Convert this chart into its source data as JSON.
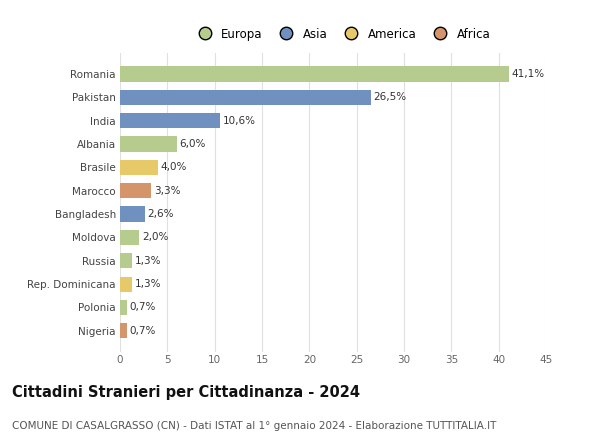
{
  "categories": [
    "Romania",
    "Pakistan",
    "India",
    "Albania",
    "Brasile",
    "Marocco",
    "Bangladesh",
    "Moldova",
    "Russia",
    "Rep. Dominicana",
    "Polonia",
    "Nigeria"
  ],
  "values": [
    41.1,
    26.5,
    10.6,
    6.0,
    4.0,
    3.3,
    2.6,
    2.0,
    1.3,
    1.3,
    0.7,
    0.7
  ],
  "labels": [
    "41,1%",
    "26,5%",
    "10,6%",
    "6,0%",
    "4,0%",
    "3,3%",
    "2,6%",
    "2,0%",
    "1,3%",
    "1,3%",
    "0,7%",
    "0,7%"
  ],
  "colors": [
    "#b5cc8e",
    "#7090c0",
    "#7090c0",
    "#b5cc8e",
    "#e8c96a",
    "#d4956a",
    "#7090c0",
    "#b5cc8e",
    "#b5cc8e",
    "#e8c96a",
    "#b5cc8e",
    "#d4956a"
  ],
  "legend_labels": [
    "Europa",
    "Asia",
    "America",
    "Africa"
  ],
  "legend_colors": [
    "#b5cc8e",
    "#7090c0",
    "#e8c96a",
    "#d4956a"
  ],
  "title": "Cittadini Stranieri per Cittadinanza - 2024",
  "subtitle": "COMUNE DI CASALGRASSO (CN) - Dati ISTAT al 1° gennaio 2024 - Elaborazione TUTTITALIA.IT",
  "xlim": [
    0,
    45
  ],
  "xticks": [
    0,
    5,
    10,
    15,
    20,
    25,
    30,
    35,
    40,
    45
  ],
  "background_color": "#ffffff",
  "grid_color": "#e0e0e0",
  "bar_height": 0.65,
  "title_fontsize": 10.5,
  "subtitle_fontsize": 7.5,
  "label_fontsize": 7.5,
  "tick_fontsize": 7.5,
  "legend_fontsize": 8.5
}
